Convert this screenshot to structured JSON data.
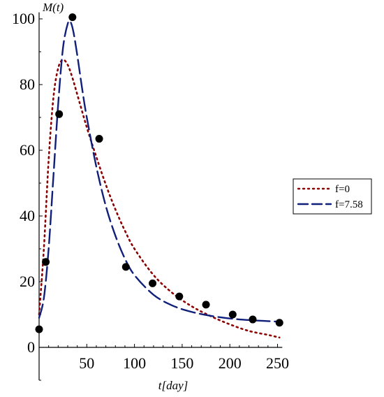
{
  "chart_data": {
    "type": "line",
    "title": "",
    "xlabel": "t[day]",
    "ylabel": "M(t)",
    "xlim": [
      0,
      255
    ],
    "ylim": [
      -10,
      102
    ],
    "xticks": [
      50,
      100,
      150,
      200,
      250
    ],
    "yticks": [
      0,
      20,
      40,
      60,
      80,
      100
    ],
    "grid": false,
    "legend_position": "right",
    "observations": {
      "x": [
        0,
        7,
        21,
        35,
        63,
        91,
        119,
        147,
        175,
        203,
        224,
        252
      ],
      "y": [
        5.5,
        26,
        71,
        100.5,
        63.5,
        24.5,
        19.5,
        15.5,
        13,
        10,
        8.5,
        7.5
      ],
      "color": "#000000"
    },
    "series": [
      {
        "name": "f=0",
        "style": "dotted",
        "color": "#8b0000",
        "x": [
          0,
          5,
          10,
          15,
          20,
          25,
          30,
          35,
          40,
          50,
          60,
          70,
          80,
          90,
          100,
          120,
          140,
          160,
          180,
          200,
          220,
          240,
          252
        ],
        "y": [
          10,
          30,
          57,
          76,
          85,
          87.5,
          86,
          82,
          77,
          67,
          58,
          49.5,
          42,
          35.5,
          30,
          22,
          16.5,
          12.5,
          9.5,
          7,
          5,
          3.8,
          3
        ]
      },
      {
        "name": "f=7.58",
        "style": "dashed",
        "color": "#0f1f7a",
        "x": [
          0,
          5,
          10,
          15,
          20,
          25,
          30,
          33,
          36,
          40,
          45,
          50,
          60,
          70,
          80,
          90,
          100,
          120,
          140,
          160,
          180,
          200,
          220,
          240,
          252
        ],
        "y": [
          9,
          15,
          30,
          52,
          74,
          91,
          98.5,
          99,
          96,
          89,
          79,
          70,
          55,
          43,
          34,
          27,
          22,
          16,
          12.7,
          10.8,
          9.6,
          8.8,
          8.3,
          8,
          7.8
        ]
      }
    ]
  }
}
